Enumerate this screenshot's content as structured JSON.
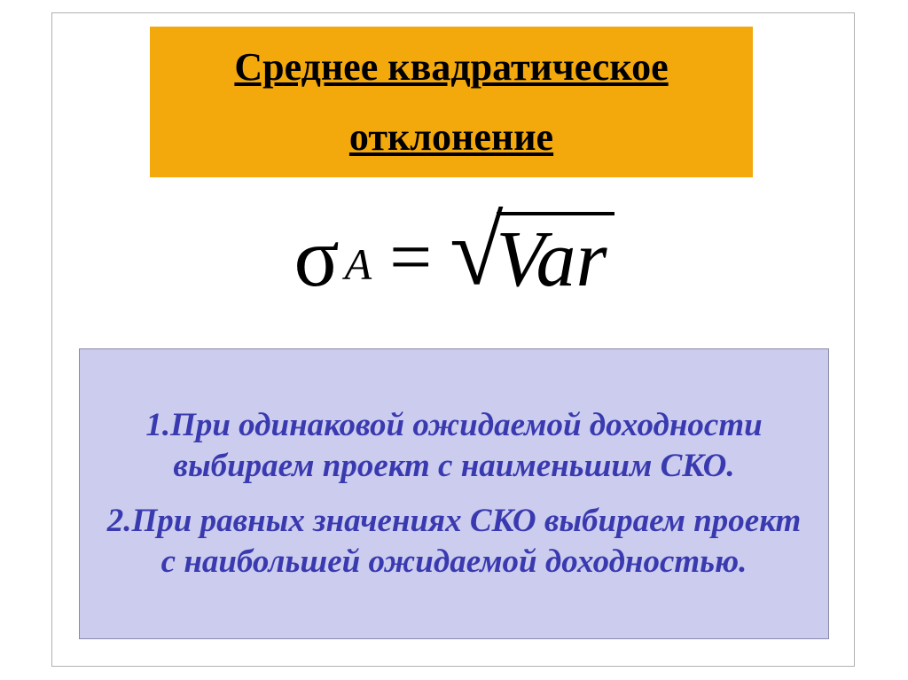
{
  "slide": {
    "title_line1": "Среднее квадратическое",
    "title_line2": "отклонение",
    "title_box": {
      "background_color": "#f3a80c",
      "text_color": "#000000",
      "font_size": 44,
      "underline": true
    },
    "formula": {
      "sigma": "σ",
      "subscript": "A",
      "equals": "=",
      "sqrt_symbol": "√",
      "radicand": "Var",
      "color": "#000000"
    },
    "rules_box": {
      "background_color": "#ccccef",
      "border_color": "#8a8aa8",
      "text_color": "#3a3ab0",
      "font_size": 37
    },
    "rule1": "1.При одинаковой ожидаемой доходности выбираем проект с наименьшим СКО.",
    "rule2": "2.При равных значениях СКО выбираем проект с наибольшей ожидаемой доходностью."
  }
}
